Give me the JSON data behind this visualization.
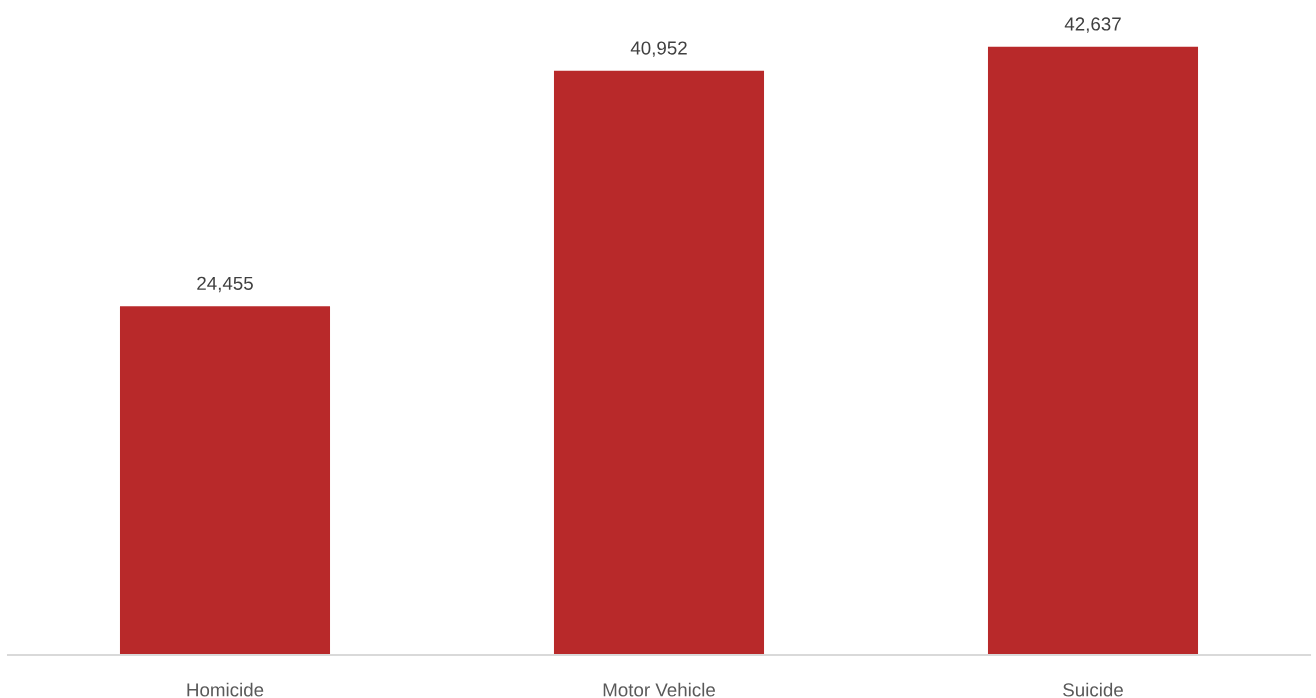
{
  "chart_data": {
    "type": "bar",
    "categories": [
      "Homicide",
      "Motor Vehicle",
      "Suicide"
    ],
    "values": [
      24455,
      40952,
      42637
    ],
    "value_labels": [
      "24,455",
      "40,952",
      "42,637"
    ],
    "color": "#b8292a",
    "tick_labels": "x"
  }
}
